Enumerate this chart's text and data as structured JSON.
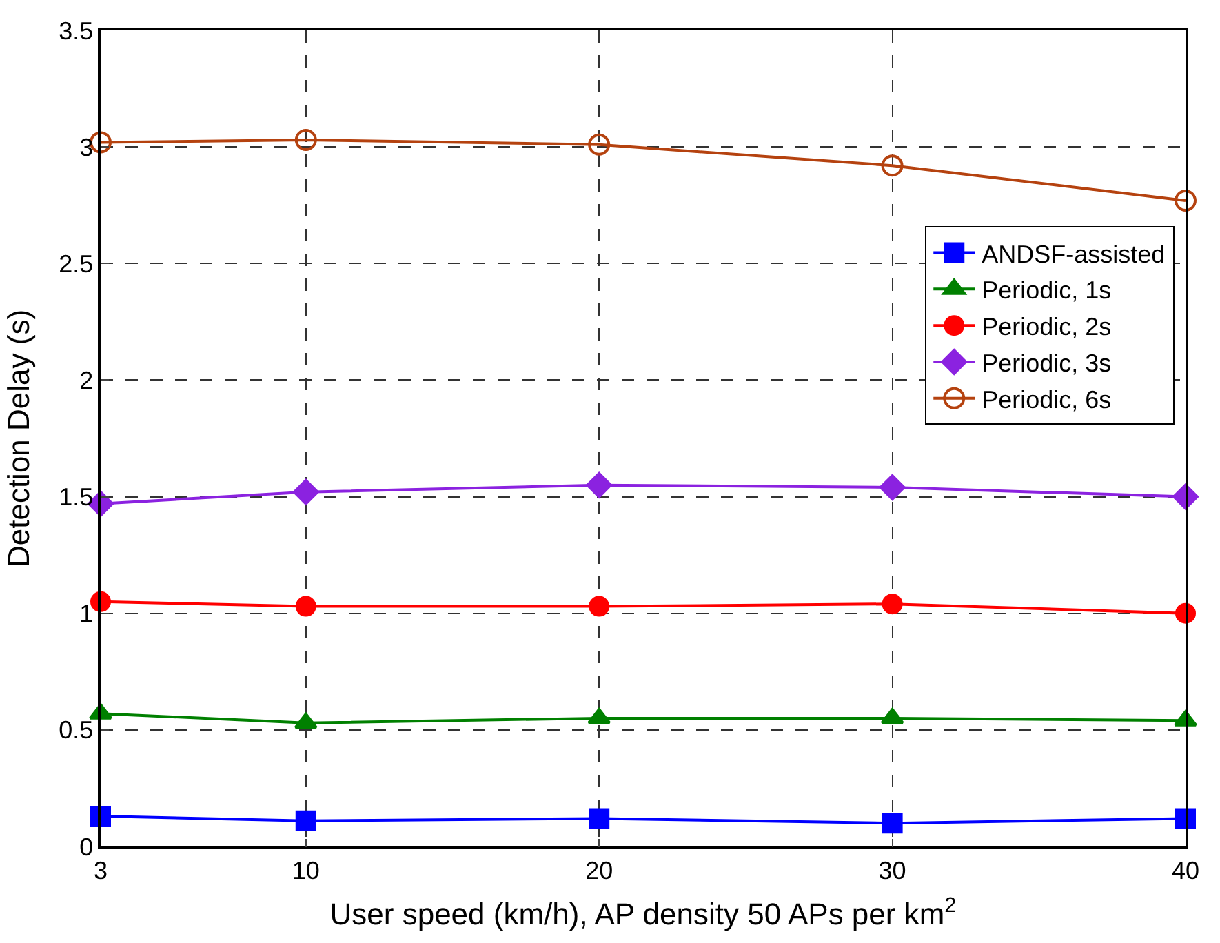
{
  "chart_data": {
    "type": "line",
    "xlabel": "User speed (km/h), AP density 50 APs per km$^{2}$",
    "ylabel": "Detection Delay (s)",
    "x": [
      3,
      10,
      20,
      30,
      40
    ],
    "series": [
      {
        "name": "ANDSF-assisted",
        "color": "#0000ff",
        "marker": "square",
        "values": [
          0.13,
          0.11,
          0.12,
          0.1,
          0.12
        ]
      },
      {
        "name": "Periodic, 1s",
        "color": "#008000",
        "marker": "triangle",
        "values": [
          0.57,
          0.53,
          0.55,
          0.55,
          0.54
        ]
      },
      {
        "name": "Periodic, 2s",
        "color": "#ff0000",
        "marker": "circle",
        "values": [
          1.05,
          1.03,
          1.03,
          1.04,
          1.0
        ]
      },
      {
        "name": "Periodic, 3s",
        "color": "#8b22e0",
        "marker": "diamond",
        "values": [
          1.47,
          1.52,
          1.55,
          1.54,
          1.5
        ]
      },
      {
        "name": "Periodic, 6s",
        "color": "#b5420f",
        "marker": "circle-open",
        "values": [
          3.02,
          3.03,
          3.01,
          2.92,
          2.77
        ]
      }
    ],
    "xlim": [
      3,
      40
    ],
    "xticks": [
      3,
      10,
      20,
      30,
      40
    ],
    "ylim": [
      0,
      3.5
    ],
    "yticks": [
      0,
      0.5,
      1,
      1.5,
      2,
      2.5,
      3,
      3.5
    ],
    "grid": true,
    "legend": "right",
    "line_style": "solid"
  }
}
